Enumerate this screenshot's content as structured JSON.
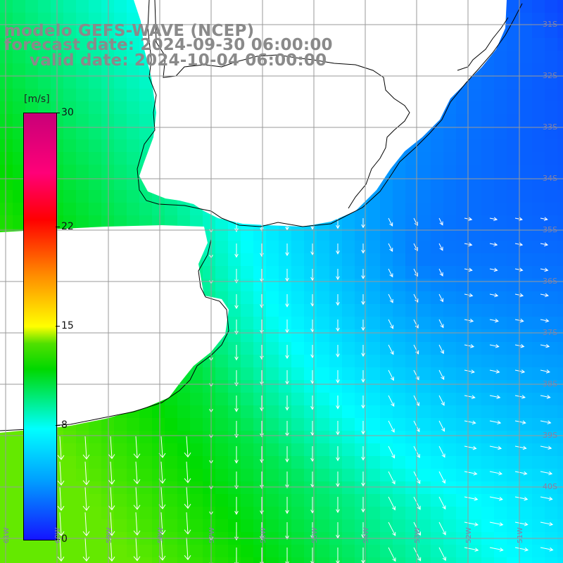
{
  "header": {
    "model_line": "modelo GEFS-WAVE (NCEP)",
    "forecast_line": "forecast date: 2024-09-30 06:00:00",
    "valid_line": "valid date: 2024-10-04 06:00:00"
  },
  "colorbar": {
    "unit": "[m/s]",
    "ticks": [
      "30",
      "22",
      "15",
      "8",
      "0"
    ],
    "tick_values": [
      30,
      22,
      15,
      8,
      0
    ],
    "min": 0,
    "max": 30,
    "colors": [
      "#1414ff",
      "#00a0ff",
      "#00ffff",
      "#00d800",
      "#50e000",
      "#ffff00",
      "#ff8c00",
      "#ff0000",
      "#ff0078",
      "#c80078"
    ]
  },
  "map": {
    "lat_labels": [
      "31S",
      "32S",
      "33S",
      "34S",
      "35S",
      "36S",
      "37S",
      "38S",
      "39S",
      "40S"
    ],
    "lon_labels": [
      "61W",
      "60W",
      "59W",
      "58W",
      "57W",
      "56W",
      "55W",
      "54W",
      "53W",
      "52W",
      "51W"
    ],
    "colors": {
      "land": "#ffffff",
      "coast": "#000000",
      "grid": "#9a9a9a",
      "arrow": "#ffffff"
    }
  }
}
